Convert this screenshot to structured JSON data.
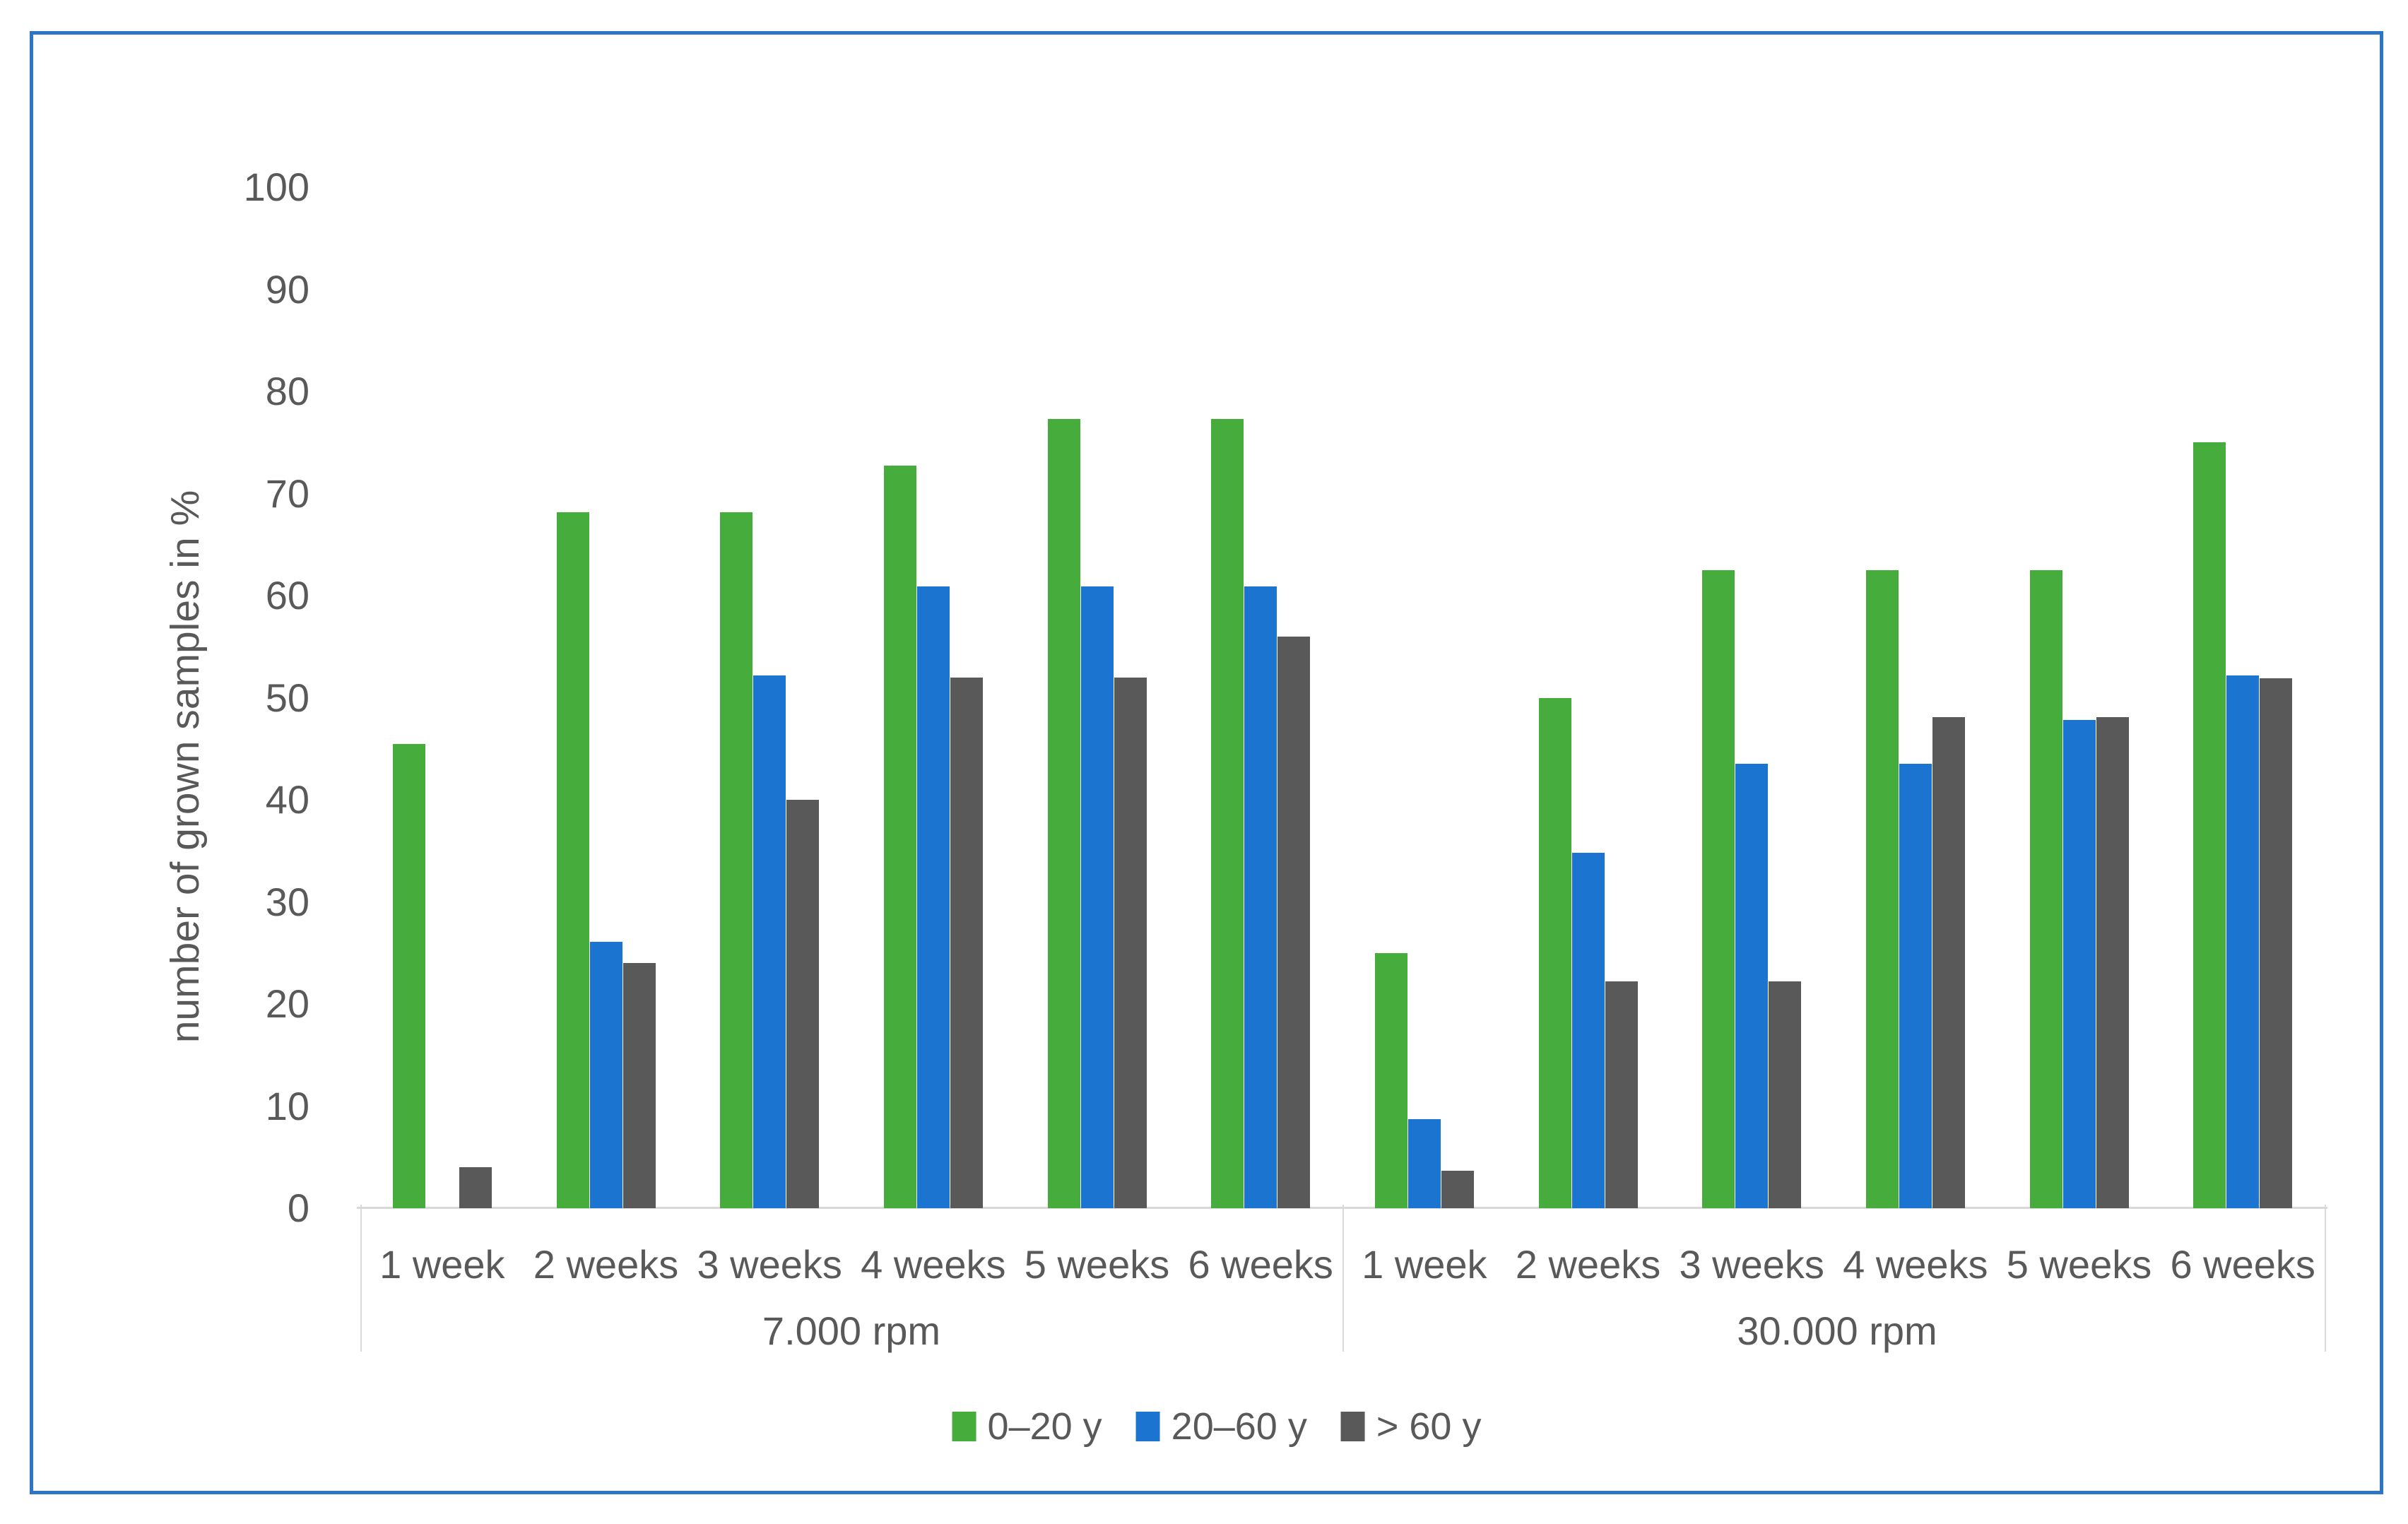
{
  "figure": {
    "border_color": "#2e75c5",
    "background_color": "#ffffff",
    "text_color": "#595959",
    "axis_line_color": "#d9d9d9"
  },
  "chart_data": {
    "type": "bar",
    "title": "",
    "ylabel": "number of grown samples in %",
    "xlabel": "",
    "ylim": [
      0,
      100
    ],
    "yticks": [
      0,
      10,
      20,
      30,
      40,
      50,
      60,
      70,
      80,
      90,
      100
    ],
    "grid": false,
    "legend_position": "bottom",
    "group_labels": [
      "7.000 rpm",
      "30.000 rpm"
    ],
    "categories": [
      "1 week",
      "2 weeks",
      "3 weeks",
      "4 weeks",
      "5 weeks",
      "6 weeks",
      "1 week",
      "2 weeks",
      "3 weeks",
      "4 weeks",
      "5 weeks",
      "6 weeks"
    ],
    "series": [
      {
        "name": "0–20 y",
        "color": "#46ad3c",
        "values": [
          45.5,
          68.2,
          68.2,
          72.7,
          77.3,
          77.3,
          25.0,
          50.0,
          62.5,
          62.5,
          62.5,
          75.0
        ]
      },
      {
        "name": "20–60 y",
        "color": "#1b74d0",
        "values": [
          0,
          26.1,
          52.2,
          60.9,
          60.9,
          60.9,
          8.7,
          34.8,
          43.5,
          43.5,
          47.8,
          52.2
        ]
      },
      {
        "name": "> 60 y",
        "color": "#595959",
        "values": [
          4.0,
          24.0,
          40.0,
          52.0,
          52.0,
          56.0,
          3.7,
          22.2,
          22.2,
          48.1,
          48.1,
          51.9
        ]
      }
    ]
  }
}
